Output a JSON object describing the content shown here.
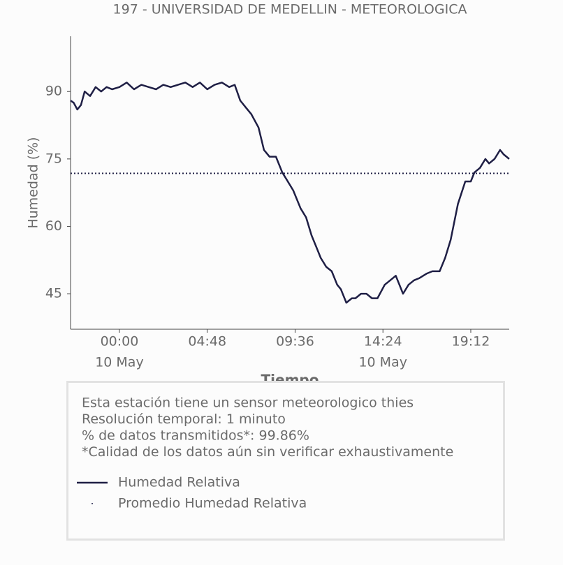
{
  "chart_data": {
    "type": "line",
    "title": "197 - UNIVERSIDAD DE MEDELLIN - METEOROLOGICA",
    "y_label": "Humedad (%)",
    "x_label": "Tiempo",
    "x": [
      -2.67,
      -2.5,
      -2.3,
      -2.1,
      -1.9,
      -1.6,
      -1.3,
      -1.0,
      -0.7,
      -0.4,
      0.0,
      0.4,
      0.8,
      1.2,
      1.6,
      2.0,
      2.4,
      2.8,
      3.2,
      3.6,
      4.0,
      4.4,
      4.8,
      5.2,
      5.6,
      6.0,
      6.3,
      6.6,
      6.9,
      7.2,
      7.6,
      7.9,
      8.2,
      8.55,
      8.9,
      9.2,
      9.5,
      9.9,
      10.2,
      10.5,
      10.8,
      11.0,
      11.3,
      11.6,
      11.9,
      12.1,
      12.4,
      12.7,
      12.9,
      13.2,
      13.5,
      13.8,
      14.1,
      14.5,
      14.8,
      15.1,
      15.3,
      15.5,
      15.8,
      16.1,
      16.4,
      16.8,
      17.1,
      17.5,
      17.8,
      18.1,
      18.5,
      18.9,
      19.2,
      19.4,
      19.7,
      20.0,
      20.2,
      20.5,
      20.8,
      21.0,
      21.3
    ],
    "series": [
      {
        "name": "Humedad Relativa",
        "color": "#1f1f45",
        "values": [
          88,
          87.5,
          86,
          87,
          90,
          89,
          91,
          90,
          91,
          90.5,
          91,
          92,
          90.5,
          91.5,
          91,
          90.5,
          91.5,
          91,
          91.5,
          92,
          91,
          92,
          90.5,
          91.5,
          92,
          91,
          91.5,
          88,
          86.5,
          85,
          82,
          77,
          75.5,
          75.5,
          72,
          70,
          68,
          64,
          62,
          58,
          55,
          53,
          51,
          50,
          47,
          46,
          43,
          44,
          44,
          45,
          45,
          44,
          44,
          47,
          48,
          49,
          47,
          45,
          47,
          48,
          48.5,
          49.5,
          50,
          50,
          53,
          57,
          65,
          70,
          70,
          72,
          73,
          75,
          74,
          75,
          77,
          76,
          75
        ]
      },
      {
        "name": "Promedio Humedad Relativa",
        "color": "#1f1f45",
        "value": 71.8,
        "style": "dotted"
      }
    ],
    "xlim": [
      -2.67,
      21.3
    ],
    "xticks": [
      {
        "value": 0,
        "label": "00:00"
      },
      {
        "value": 4.8,
        "label": "04:48"
      },
      {
        "value": 9.6,
        "label": "09:36"
      },
      {
        "value": 14.4,
        "label": "14:24"
      },
      {
        "value": 19.2,
        "label": "19:12"
      }
    ],
    "x_date_labels": [
      {
        "value": 0,
        "label": "10 May"
      },
      {
        "value": 14.4,
        "label": "10 May"
      }
    ],
    "ylim": [
      37.1,
      102.3
    ],
    "yticks": [
      45,
      60,
      75,
      90
    ],
    "info_lines": [
      "Esta estación tiene un sensor meteorologico thies",
      "Resolución temporal: 1 minuto",
      "% de datos transmitidos*: 99.86%",
      "*Calidad de los datos aún sin verificar exhaustivamente"
    ]
  }
}
